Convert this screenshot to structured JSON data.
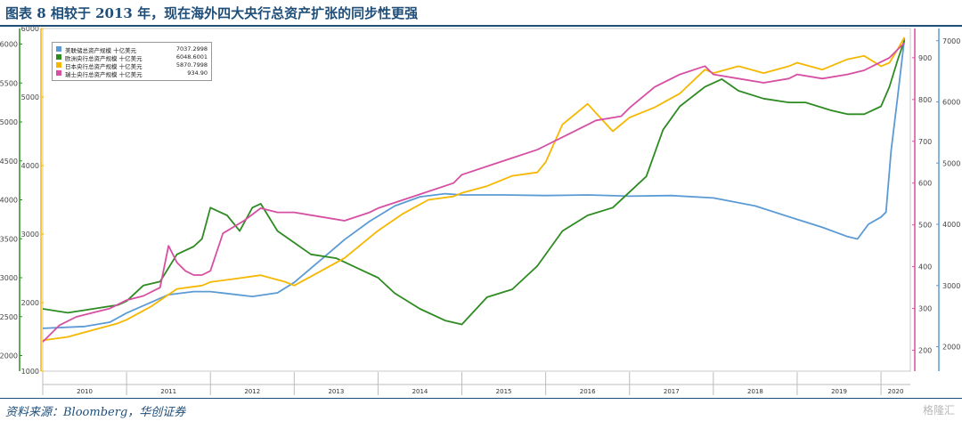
{
  "title": "图表 8 相较于 2013 年，现在海外四大央行总资产扩张的同步性更强",
  "source": "资料来源：Bloomberg，华创证券",
  "watermark": "格隆汇",
  "chart_data": {
    "type": "line",
    "x_tick_labels": [
      "2010",
      "2011",
      "2012",
      "2013",
      "2014",
      "2015",
      "2016",
      "2017",
      "2018",
      "2019",
      "2020"
    ],
    "axes": {
      "eur": {
        "range": [
          1800,
          6200
        ],
        "ticks": [
          2000,
          2500,
          3000,
          3500,
          4000,
          4500,
          5000,
          5500,
          6000
        ],
        "side": "left-outer"
      },
      "jpy": {
        "range": [
          1000,
          6000
        ],
        "ticks": [
          1000,
          2000,
          3000,
          4000,
          5000,
          6000
        ],
        "side": "left-inner"
      },
      "chf": {
        "range": [
          150,
          970
        ],
        "ticks": [
          200,
          300,
          400,
          500,
          600,
          700,
          800,
          900
        ],
        "side": "right-inner"
      },
      "usd": {
        "range": [
          1600,
          7200
        ],
        "ticks": [
          2000,
          3000,
          4000,
          5000,
          6000,
          7000
        ],
        "side": "right-outer"
      }
    },
    "legend_placement": "top-left",
    "series": [
      {
        "name": "美联储总资产规模 十亿美元",
        "last": "7037.2998",
        "axis": "usd",
        "color": "#5b9bd5",
        "x": [
          2010.0,
          2010.5,
          2010.8,
          2011.0,
          2011.5,
          2011.8,
          2012.0,
          2012.5,
          2012.8,
          2013.0,
          2013.3,
          2013.6,
          2013.9,
          2014.2,
          2014.5,
          2014.8,
          2015.0,
          2015.5,
          2016.0,
          2016.5,
          2017.0,
          2017.5,
          2018.0,
          2018.5,
          2019.0,
          2019.3,
          2019.6,
          2019.72,
          2019.85,
          2020.0,
          2020.06,
          2020.12,
          2020.2,
          2020.28
        ],
        "y": [
          2300,
          2330,
          2400,
          2550,
          2850,
          2900,
          2900,
          2820,
          2880,
          3050,
          3400,
          3750,
          4050,
          4300,
          4450,
          4500,
          4480,
          4480,
          4470,
          4480,
          4460,
          4470,
          4430,
          4300,
          4080,
          3950,
          3800,
          3760,
          4000,
          4120,
          4200,
          5200,
          6100,
          7037
        ]
      },
      {
        "name": "欧洲央行总资产规模 十亿美元",
        "last": "6048.6001",
        "axis": "eur",
        "color": "#2e8b22",
        "x": [
          2010.0,
          2010.3,
          2010.6,
          2010.9,
          2011.0,
          2011.2,
          2011.4,
          2011.6,
          2011.8,
          2011.9,
          2012.0,
          2012.2,
          2012.35,
          2012.5,
          2012.6,
          2012.8,
          2013.0,
          2013.2,
          2013.5,
          2013.8,
          2014.0,
          2014.2,
          2014.5,
          2014.8,
          2015.0,
          2015.3,
          2015.6,
          2015.9,
          2016.2,
          2016.5,
          2016.8,
          2017.0,
          2017.2,
          2017.4,
          2017.6,
          2017.9,
          2018.1,
          2018.3,
          2018.6,
          2018.9,
          2019.1,
          2019.4,
          2019.6,
          2019.8,
          2020.0,
          2020.1,
          2020.2,
          2020.28
        ],
        "y": [
          2600,
          2550,
          2600,
          2650,
          2700,
          2900,
          2950,
          3300,
          3400,
          3500,
          3900,
          3800,
          3600,
          3900,
          3950,
          3600,
          3450,
          3300,
          3250,
          3100,
          3000,
          2800,
          2600,
          2450,
          2400,
          2750,
          2850,
          3150,
          3600,
          3800,
          3900,
          4100,
          4300,
          4900,
          5200,
          5450,
          5550,
          5400,
          5300,
          5250,
          5250,
          5150,
          5100,
          5100,
          5200,
          5450,
          5800,
          6049
        ]
      },
      {
        "name": "日本央行总资产规模 十亿美元",
        "last": "5870.7998",
        "axis": "jpy",
        "color": "#f5b700",
        "x": [
          2010.0,
          2010.3,
          2010.6,
          2010.9,
          2011.0,
          2011.3,
          2011.6,
          2011.9,
          2012.0,
          2012.3,
          2012.6,
          2012.9,
          2013.0,
          2013.3,
          2013.6,
          2013.9,
          2014.0,
          2014.3,
          2014.6,
          2014.9,
          2015.0,
          2015.3,
          2015.6,
          2015.9,
          2016.0,
          2016.2,
          2016.5,
          2016.8,
          2017.0,
          2017.3,
          2017.6,
          2017.9,
          2018.0,
          2018.3,
          2018.6,
          2018.9,
          2019.0,
          2019.3,
          2019.6,
          2019.8,
          2020.0,
          2020.1,
          2020.2,
          2020.28
        ],
        "y": [
          1450,
          1500,
          1600,
          1700,
          1750,
          1950,
          2200,
          2250,
          2300,
          2350,
          2400,
          2300,
          2250,
          2450,
          2650,
          2950,
          3050,
          3300,
          3500,
          3550,
          3600,
          3700,
          3850,
          3900,
          4050,
          4600,
          4900,
          4500,
          4700,
          4850,
          5050,
          5400,
          5350,
          5450,
          5350,
          5450,
          5500,
          5400,
          5550,
          5600,
          5450,
          5500,
          5700,
          5871
        ]
      },
      {
        "name": "瑞士央行总资产规模 十亿美元",
        "last": "934.90",
        "axis": "chf",
        "color": "#d64fa3",
        "x": [
          2010.0,
          2010.2,
          2010.4,
          2010.6,
          2010.8,
          2011.0,
          2011.2,
          2011.4,
          2011.5,
          2011.6,
          2011.7,
          2011.8,
          2011.9,
          2012.0,
          2012.15,
          2012.4,
          2012.6,
          2012.8,
          2013.0,
          2013.3,
          2013.6,
          2013.9,
          2014.0,
          2014.3,
          2014.6,
          2014.9,
          2015.0,
          2015.3,
          2015.6,
          2015.9,
          2016.0,
          2016.3,
          2016.6,
          2016.9,
          2017.0,
          2017.3,
          2017.6,
          2017.9,
          2018.0,
          2018.3,
          2018.6,
          2018.9,
          2019.0,
          2019.3,
          2019.6,
          2019.8,
          2020.0,
          2020.1,
          2020.2,
          2020.28
        ],
        "y": [
          220,
          260,
          280,
          290,
          300,
          320,
          330,
          350,
          450,
          410,
          390,
          380,
          380,
          390,
          480,
          510,
          540,
          530,
          530,
          520,
          510,
          530,
          540,
          560,
          580,
          600,
          620,
          640,
          660,
          680,
          690,
          720,
          750,
          760,
          780,
          830,
          860,
          880,
          860,
          850,
          840,
          850,
          860,
          850,
          860,
          870,
          890,
          900,
          920,
          935
        ]
      }
    ]
  }
}
